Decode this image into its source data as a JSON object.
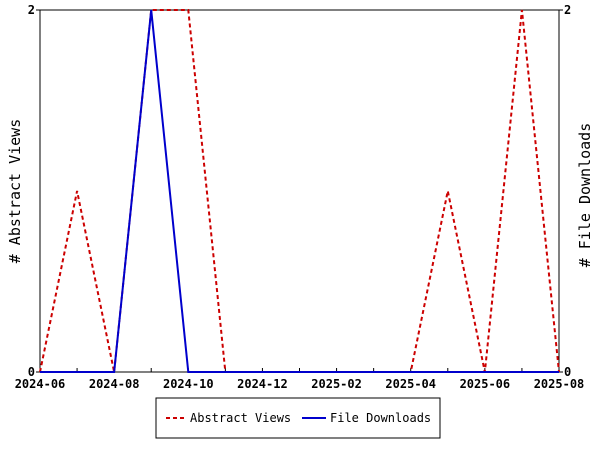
{
  "chart_data": {
    "type": "line",
    "x": [
      "2024-06",
      "2024-07",
      "2024-08",
      "2024-09",
      "2024-10",
      "2024-11",
      "2024-12",
      "2025-01",
      "2025-02",
      "2025-03",
      "2025-04",
      "2025-05",
      "2025-06",
      "2025-07",
      "2025-08"
    ],
    "x_tick_labels": [
      "2024-06",
      "2024-08",
      "2024-10",
      "2024-12",
      "2025-02",
      "2025-04",
      "2025-06",
      "2025-08"
    ],
    "series": [
      {
        "name": "Abstract Views",
        "axis": "left",
        "color": "#cc0000",
        "style": "dashed",
        "values": [
          0,
          1,
          0,
          2,
          2,
          0,
          0,
          0,
          0,
          0,
          0,
          1,
          0,
          2,
          0
        ]
      },
      {
        "name": "File Downloads",
        "axis": "right",
        "color": "#0000cc",
        "style": "solid",
        "values": [
          0,
          0,
          0,
          2,
          0,
          0,
          0,
          0,
          0,
          0,
          0,
          0,
          0,
          0,
          0
        ]
      }
    ],
    "ylabel_left": "# Abstract Views",
    "ylabel_right": "# File Downloads",
    "ylim_left": [
      0,
      2
    ],
    "ylim_right": [
      0,
      2
    ],
    "y_ticks_left": [
      "0",
      "2"
    ],
    "y_ticks_right": [
      "0",
      "2"
    ],
    "grid": false,
    "legend_position": "bottom"
  }
}
